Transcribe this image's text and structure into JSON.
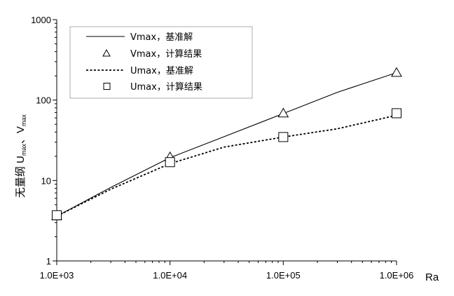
{
  "chart_data": {
    "type": "line",
    "title": "",
    "xlabel": "Ra",
    "ylabel": {
      "prefix": "无量纲 U",
      "sub1": "max",
      "mid": "、V",
      "sub2": "max"
    },
    "xscale": "log",
    "yscale": "log",
    "xlim": [
      1000,
      1000000
    ],
    "ylim": [
      1,
      1000
    ],
    "xtick_labels": [
      "1.0E+03",
      "1.0E+04",
      "1.0E+05",
      "1.0E+06"
    ],
    "ytick_labels": [
      "1",
      "10",
      "100",
      "1000"
    ],
    "grid": false,
    "legend_position": "top-left",
    "series": [
      {
        "name": "Vmax，基准解",
        "style": "solid-line",
        "x": [
          1000,
          3000,
          10000,
          30000,
          100000,
          300000,
          1000000
        ],
        "y": [
          3.6,
          8.2,
          19.2,
          35,
          68,
          125,
          219
        ]
      },
      {
        "name": "Vmax，计算结果",
        "style": "triangle-marker",
        "x": [
          1000,
          10000,
          100000,
          1000000
        ],
        "y": [
          3.6,
          19.6,
          68.5,
          219
        ]
      },
      {
        "name": "Umax，基准解",
        "style": "dashed-line",
        "x": [
          1000,
          3000,
          10000,
          30000,
          100000,
          300000,
          1000000
        ],
        "y": [
          3.6,
          7.8,
          16.2,
          26,
          34.7,
          44,
          64.6
        ]
      },
      {
        "name": "Umax，计算结果",
        "style": "square-marker",
        "x": [
          1000,
          10000,
          100000,
          1000000
        ],
        "y": [
          3.7,
          16.9,
          34.7,
          68.6
        ]
      }
    ],
    "colors": {
      "line": "#000000",
      "marker_fill": "#ffffff"
    }
  }
}
